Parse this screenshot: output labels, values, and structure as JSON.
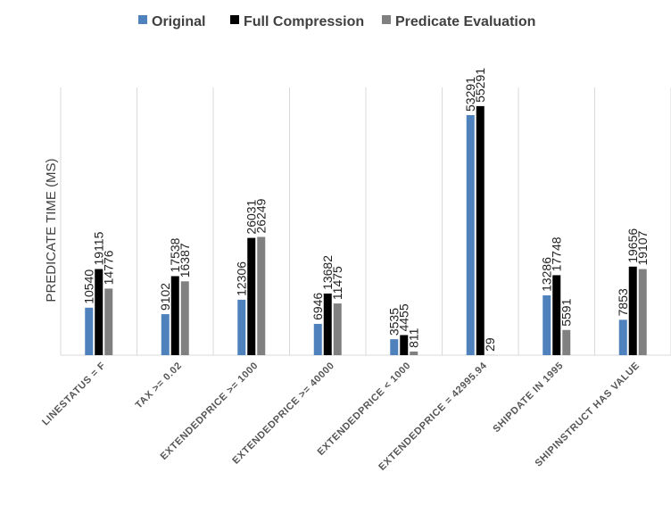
{
  "chart_data": {
    "type": "bar",
    "title": "",
    "xlabel": "",
    "ylabel": "PREDICATE TIME (MS)",
    "legend_position": "top",
    "grid": "vertical-separators",
    "ylim": [
      0,
      60000
    ],
    "categories": [
      "LINESTATUS = F",
      "TAX >= 0.02",
      "EXTENDEDPRICE >= 1000",
      "EXTENDEDPRICE >= 40000",
      "EXTENDEDPRICE < 1000",
      "EXTENDEDPRICE = 42995.94",
      "SHIPDATE IN 1995",
      "SHIPINSTRUCT HAS VALUE"
    ],
    "series": [
      {
        "name": "Original",
        "color": "#4F81BD",
        "values": [
          10540,
          9102,
          12306,
          6946,
          3535,
          53291,
          13286,
          7853
        ]
      },
      {
        "name": "Full Compression",
        "color": "#000000",
        "values": [
          19115,
          17538,
          26031,
          13682,
          4455,
          55291,
          17748,
          19656
        ]
      },
      {
        "name": "Predicate Evaluation",
        "color": "#808080",
        "values": [
          14776,
          16387,
          26249,
          11475,
          811,
          29,
          5591,
          19107
        ]
      }
    ]
  }
}
